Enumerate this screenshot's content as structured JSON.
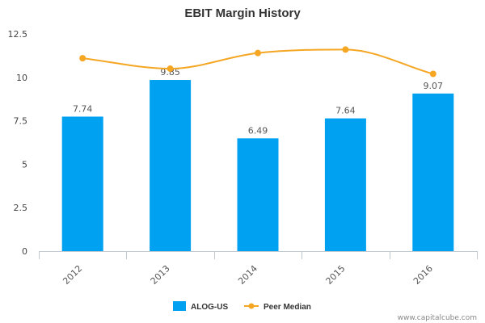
{
  "chart_data": {
    "type": "bar",
    "title": "EBIT Margin History",
    "categories": [
      "2012",
      "2013",
      "2014",
      "2015",
      "2016"
    ],
    "ylim": [
      0,
      12.5
    ],
    "yticks": [
      0,
      2.5,
      5,
      7.5,
      10,
      12.5
    ],
    "ytick_labels": [
      "0",
      "2.5",
      "5",
      "7.5",
      "10",
      "12.5"
    ],
    "grid": false,
    "legend_position": "bottom-center",
    "series": [
      {
        "name": "ALOG-US",
        "type": "bar",
        "color": "#00a1f1",
        "values": [
          7.74,
          9.85,
          6.49,
          7.64,
          9.07
        ],
        "labels": [
          "7.74",
          "9.85",
          "6.49",
          "7.64",
          "9.07"
        ]
      },
      {
        "name": "Peer Median",
        "type": "line",
        "color": "#f5a623",
        "smooth": true,
        "values": [
          11.1,
          10.5,
          11.4,
          11.6,
          10.2
        ]
      }
    ]
  },
  "credit": "www.capitalcube.com"
}
